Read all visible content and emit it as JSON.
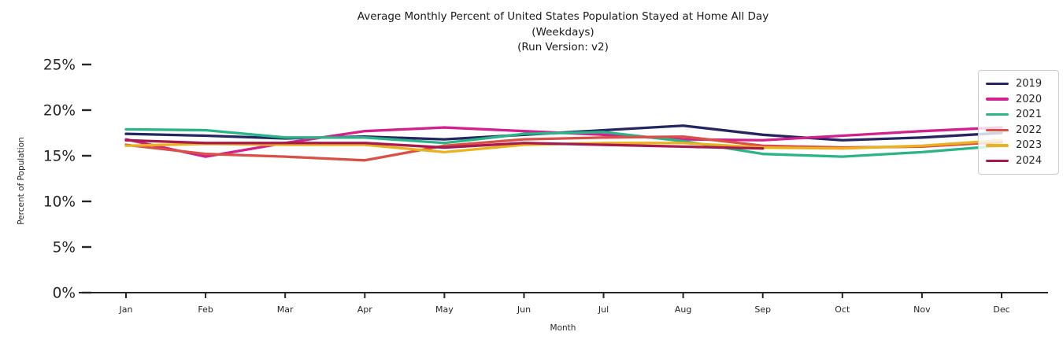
{
  "title": {
    "line1": "Average Monthly Percent of United States Population Stayed at Home All Day",
    "line2": "(Weekdays)",
    "line3": "(Run Version: v2)"
  },
  "chart_data": {
    "type": "line",
    "x": [
      "Jan",
      "Feb",
      "Mar",
      "Apr",
      "May",
      "Jun",
      "Jul",
      "Aug",
      "Sep",
      "Oct",
      "Nov",
      "Dec"
    ],
    "xlabel": "Month",
    "ylabel": "Percent of Population",
    "ylim": [
      0,
      25
    ],
    "yticks": [
      0,
      5,
      10,
      15,
      20,
      25
    ],
    "ytick_labels": [
      "0%",
      "5%",
      "10%",
      "15%",
      "20%",
      "25%"
    ],
    "grid": false,
    "legend_position": "upper right",
    "axis_color": "#262626",
    "series": [
      {
        "name": "2019",
        "color": "#232661",
        "values": [
          17.4,
          17.2,
          16.9,
          17.1,
          16.8,
          17.3,
          17.8,
          18.3,
          17.3,
          16.7,
          17.0,
          17.5
        ]
      },
      {
        "name": "2020",
        "color": "#d2218c",
        "values": [
          16.8,
          14.9,
          16.4,
          17.7,
          18.1,
          17.7,
          17.3,
          16.8,
          16.7,
          17.2,
          17.7,
          18.1
        ]
      },
      {
        "name": "2021",
        "color": "#2ab487",
        "values": [
          17.9,
          17.8,
          17.0,
          17.0,
          16.4,
          17.4,
          17.6,
          16.6,
          15.2,
          14.9,
          15.4,
          16.1
        ]
      },
      {
        "name": "2022",
        "color": "#d85046",
        "values": [
          16.2,
          15.2,
          14.9,
          14.5,
          16.1,
          16.8,
          17.0,
          17.1,
          16.1,
          15.9,
          16.0,
          16.5
        ]
      },
      {
        "name": "2023",
        "color": "#e9b21f",
        "values": [
          16.1,
          16.3,
          16.2,
          16.2,
          15.4,
          16.2,
          16.4,
          16.4,
          15.9,
          15.8,
          16.1,
          16.7
        ]
      },
      {
        "name": "2024",
        "color": "#a61a4e",
        "values": [
          16.7,
          16.4,
          16.4,
          16.4,
          15.9,
          16.4,
          16.2,
          16.0,
          15.8
        ]
      }
    ]
  }
}
